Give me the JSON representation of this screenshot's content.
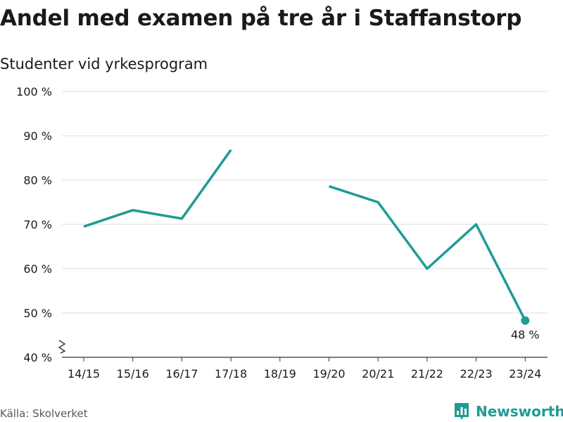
{
  "title": "Andel med examen på tre år i Staffanstorp",
  "subtitle": "Studenter vid yrkesprogram",
  "source": "Källa: Skolverket",
  "brand": {
    "name": "Newsworthy",
    "icon": "newsworthy-logo-icon"
  },
  "colors": {
    "line": "#1f9b93",
    "grid": "#dddddd",
    "axis": "#333333",
    "text": "#1a1a1a"
  },
  "chart_data": {
    "type": "line",
    "categories": [
      "14/15",
      "15/16",
      "16/17",
      "17/18",
      "18/19",
      "19/20",
      "20/21",
      "21/22",
      "22/23",
      "23/24"
    ],
    "series": [
      {
        "values": [
          69.5,
          73.2,
          71.3,
          86.8,
          null,
          78.6,
          75.0,
          60.0,
          70.0,
          48.3
        ]
      }
    ],
    "ylim": [
      40,
      100
    ],
    "yticks": [
      40,
      50,
      60,
      70,
      80,
      90,
      100
    ],
    "ytick_labels": [
      "40 %",
      "50 %",
      "60 %",
      "70 %",
      "80 %",
      "90 %",
      "100 %"
    ],
    "y_axis_break": true,
    "grid": true,
    "last_point_label": "48 %",
    "xlabel": "",
    "ylabel": ""
  }
}
